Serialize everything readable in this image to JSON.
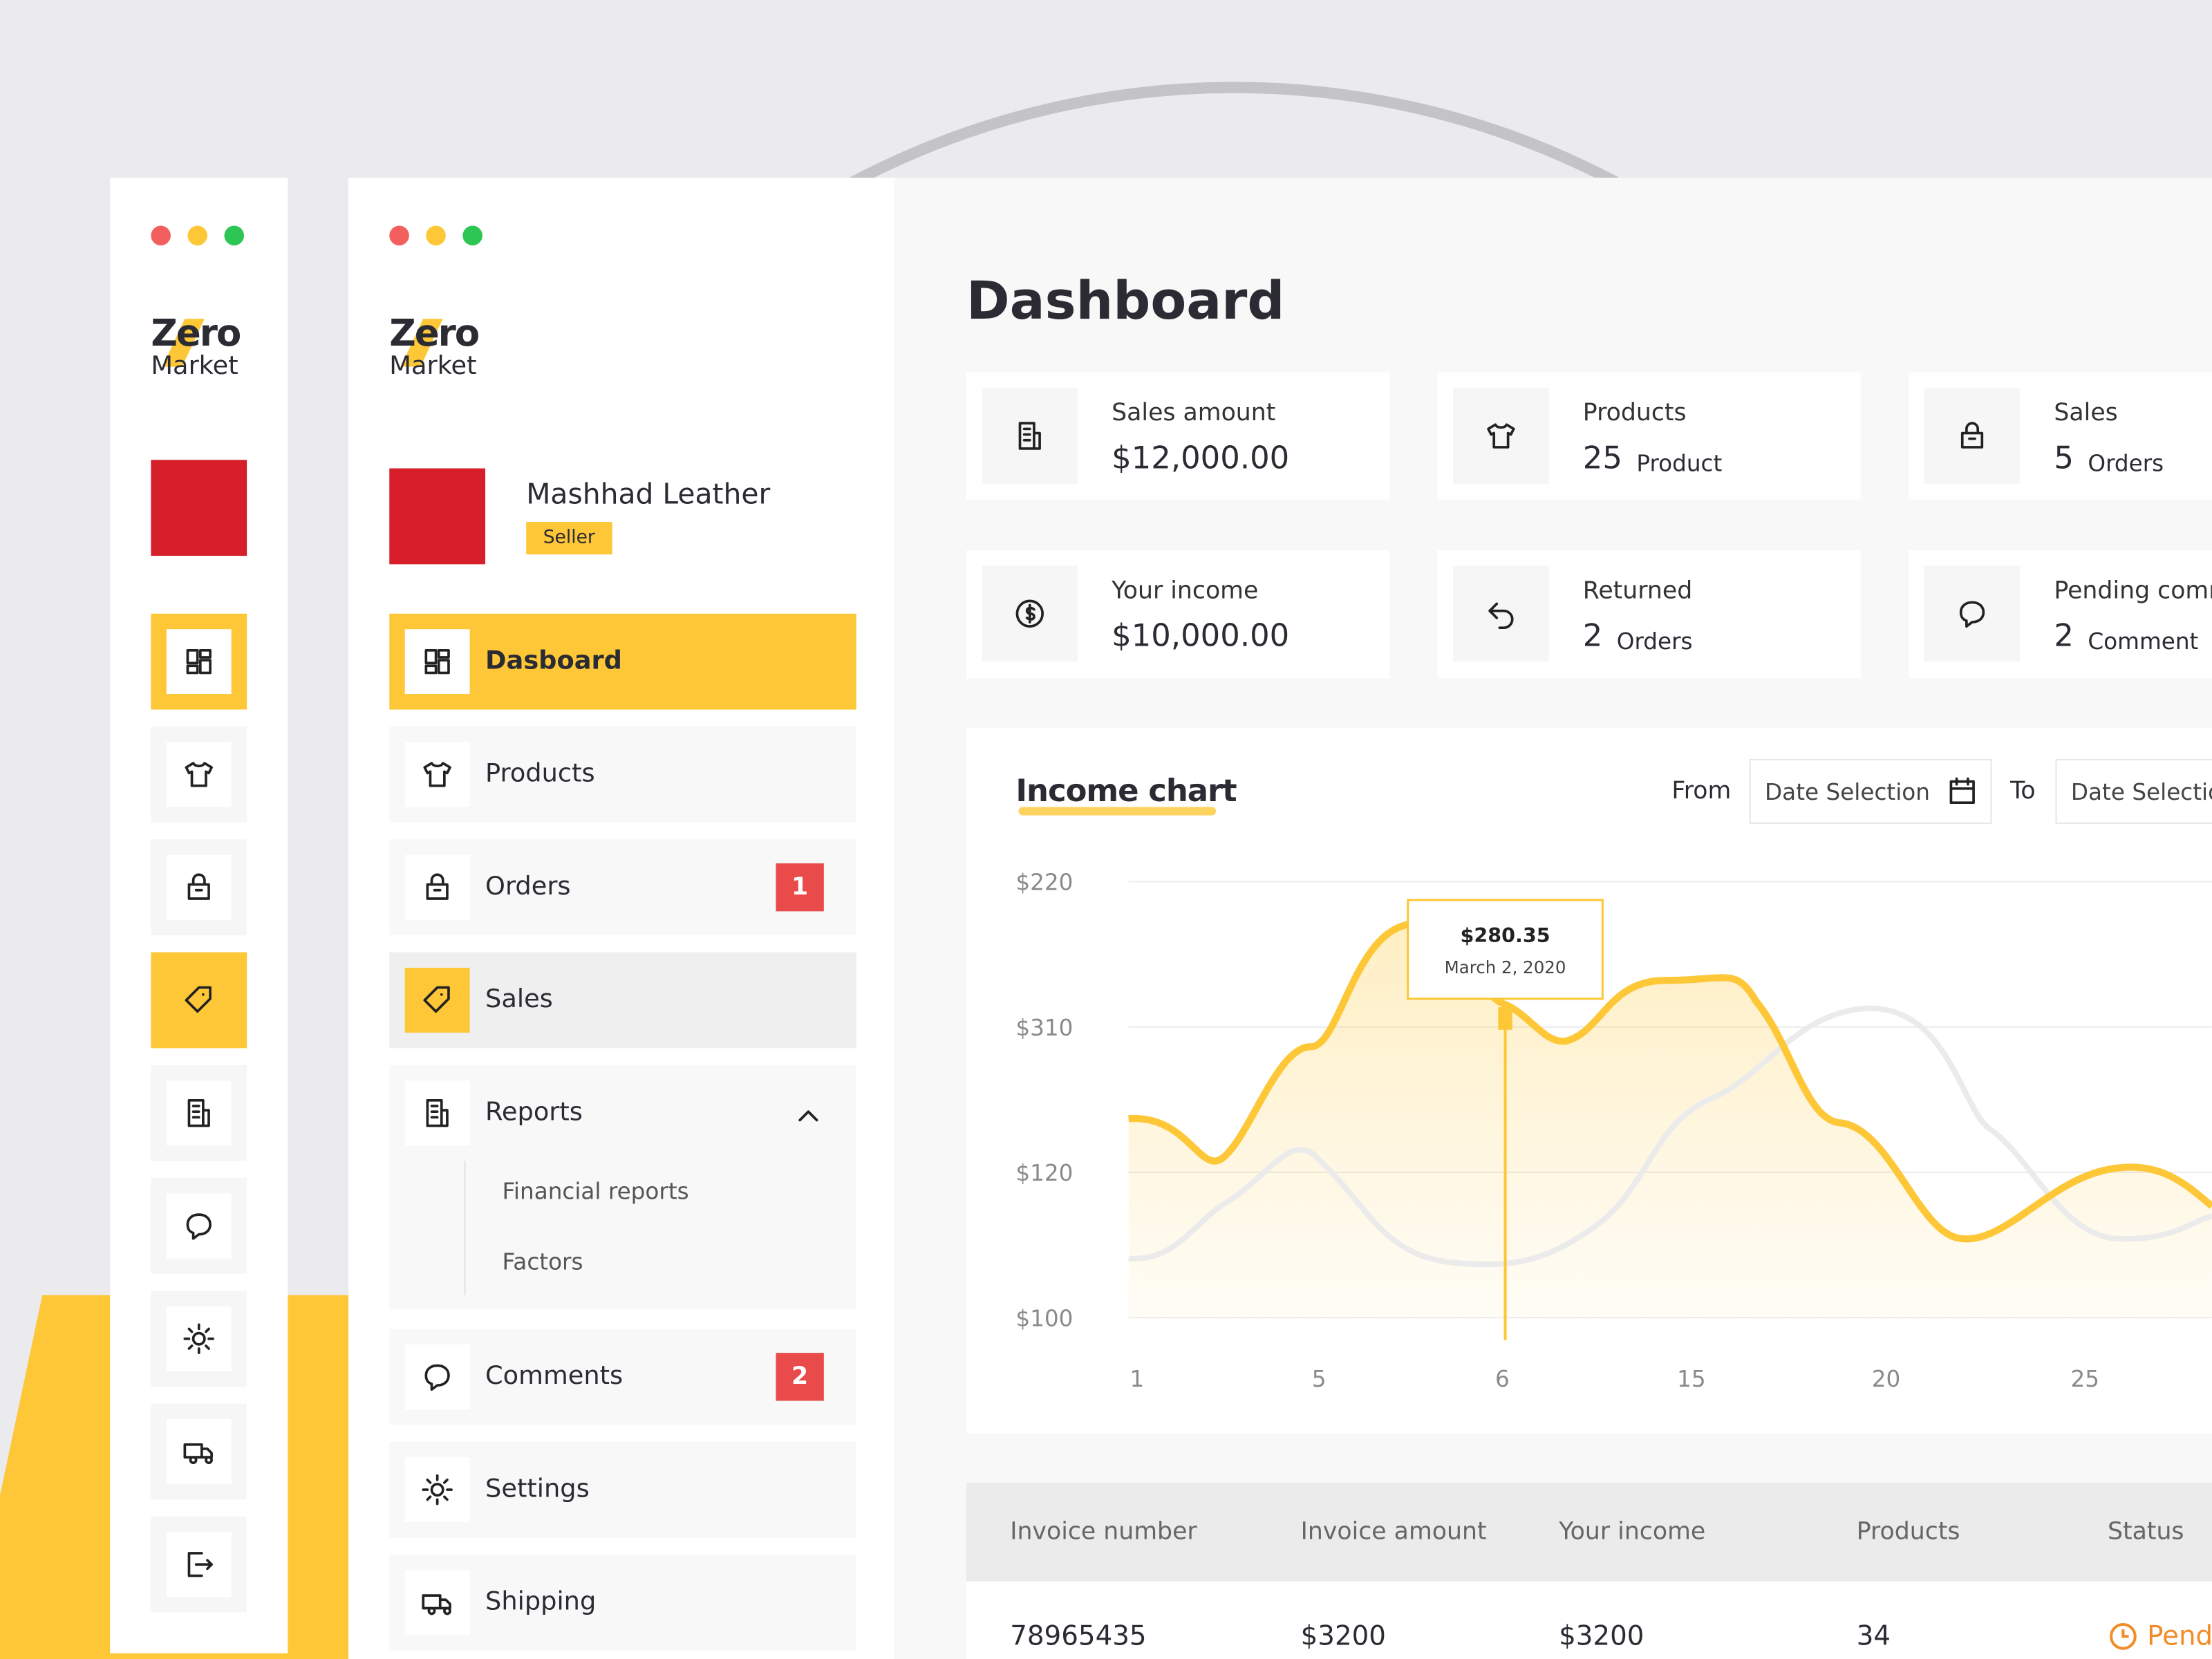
{
  "logo": {
    "line1": "Zero",
    "line2": "Market"
  },
  "store": {
    "name": "Mashhad Leather",
    "role": "Seller"
  },
  "nav": [
    {
      "label": "Dasboard"
    },
    {
      "label": "Products"
    },
    {
      "label": "Orders",
      "badge": "1"
    },
    {
      "label": "Sales"
    },
    {
      "label": "Reports",
      "children": [
        "Financial reports",
        "Factors"
      ]
    },
    {
      "label": "Comments",
      "badge": "2"
    },
    {
      "label": "Settings"
    },
    {
      "label": "Shipping"
    }
  ],
  "main": {
    "title": "Dashboard",
    "stats": [
      {
        "label": "Sales amount",
        "value": "$12,000.00"
      },
      {
        "label": "Products",
        "value": "25",
        "unit": "Product"
      },
      {
        "label": "Sales",
        "value": "5",
        "unit": "Orders"
      },
      {
        "label": "Your income",
        "value": "$10,000.00"
      },
      {
        "label": "Returned",
        "value": "2",
        "unit": "Orders"
      },
      {
        "label": "Pending comments",
        "value": "2",
        "unit": "Comment"
      }
    ],
    "chart": {
      "title": "Income chart",
      "from": "From",
      "to": "To",
      "date_placeholder": "Date Selection",
      "y_labels": [
        "$220",
        "$310",
        "$120",
        "$100"
      ],
      "x_labels": [
        "1",
        "5",
        "6",
        "15",
        "20",
        "25"
      ],
      "tooltip": {
        "value": "$280.35",
        "date": "March 2, 2020"
      }
    },
    "table": {
      "headers": [
        "Invoice number",
        "Invoice amount",
        "Your income",
        "Products",
        "Status"
      ],
      "rows": [
        [
          "78965435",
          "$3200",
          "$3200",
          "34",
          "Pending"
        ]
      ]
    }
  }
}
